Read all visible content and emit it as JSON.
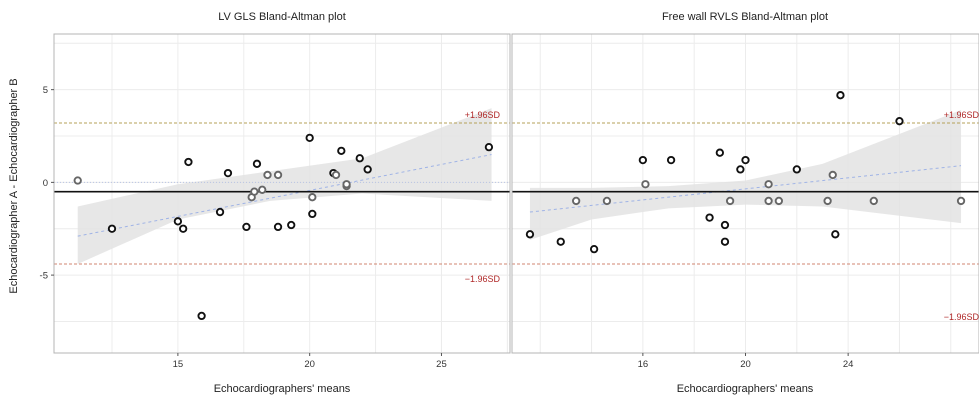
{
  "y_axis_label": "Echocardiographer A - Echocardiographer B",
  "colors": {
    "band": "#e3e3e3",
    "trend": "#9fb3e6",
    "limit_upper": "#b5a15a",
    "limit_lower": "#d08570",
    "limit_label": "#b02828",
    "mean_line": "#111111",
    "grid": "#ececec",
    "panel_border": "#b4b4b4"
  },
  "chart_data": [
    {
      "type": "scatter",
      "title": "LV GLS Bland-Altman plot",
      "xlabel": "Echocardiographers' means",
      "ylabel": "Echocardiographer A - Echocardiographer B",
      "xlim": [
        10.3,
        27.6
      ],
      "ylim": [
        -9.2,
        8.0
      ],
      "x_ticks": [
        15,
        20,
        25
      ],
      "y_ticks": [
        -5,
        0,
        5
      ],
      "grid": true,
      "mean_bias": -0.5,
      "upper_limit": 3.2,
      "lower_limit": -4.4,
      "upper_label": "+1.96SD",
      "lower_label": "−1.96SD",
      "trend_line": {
        "x": [
          11.2,
          26.9
        ],
        "y": [
          -2.9,
          1.5
        ]
      },
      "confidence_band": {
        "x": [
          11.2,
          15,
          18.5,
          22,
          26.9
        ],
        "upper": [
          -1.3,
          -0.1,
          0.6,
          1.3,
          4.0
        ],
        "lower": [
          -4.4,
          -2.0,
          -1.0,
          -0.6,
          -1.0
        ]
      },
      "points": [
        {
          "x": 11.2,
          "y": 0.1
        },
        {
          "x": 12.5,
          "y": -2.5
        },
        {
          "x": 15.0,
          "y": -2.1
        },
        {
          "x": 15.2,
          "y": -2.5
        },
        {
          "x": 15.4,
          "y": 1.1
        },
        {
          "x": 15.9,
          "y": -7.2
        },
        {
          "x": 16.6,
          "y": -1.6
        },
        {
          "x": 16.9,
          "y": 0.5
        },
        {
          "x": 17.6,
          "y": -2.4
        },
        {
          "x": 17.8,
          "y": -0.8
        },
        {
          "x": 17.9,
          "y": -0.5
        },
        {
          "x": 18.0,
          "y": 1.0
        },
        {
          "x": 18.2,
          "y": -0.4
        },
        {
          "x": 18.4,
          "y": 0.4
        },
        {
          "x": 18.8,
          "y": -2.4
        },
        {
          "x": 18.8,
          "y": 0.4
        },
        {
          "x": 19.3,
          "y": -2.3
        },
        {
          "x": 20.0,
          "y": 2.4
        },
        {
          "x": 20.1,
          "y": -0.8
        },
        {
          "x": 20.1,
          "y": -1.7
        },
        {
          "x": 20.9,
          "y": 0.5
        },
        {
          "x": 21.0,
          "y": 0.4
        },
        {
          "x": 21.2,
          "y": 1.7
        },
        {
          "x": 21.4,
          "y": -0.2
        },
        {
          "x": 21.4,
          "y": -0.1
        },
        {
          "x": 21.9,
          "y": 1.3
        },
        {
          "x": 22.2,
          "y": 0.7
        },
        {
          "x": 26.8,
          "y": 1.9
        }
      ]
    },
    {
      "type": "scatter",
      "title": "Free wall RVLS Bland-Altman plot",
      "xlabel": "Echocardiographers' means",
      "xlim": [
        10.9,
        29.1
      ],
      "ylim": [
        -9.2,
        8.0
      ],
      "x_ticks": [
        16,
        20,
        24
      ],
      "y_ticks": [
        -5,
        0,
        5
      ],
      "grid": true,
      "mean_bias": -0.5,
      "upper_limit": 3.2,
      "lower_limit": -4.4,
      "upper_label": "+1.96SD",
      "lower_label": "−1.96SD",
      "trend_line": {
        "x": [
          11.6,
          28.4
        ],
        "y": [
          -1.6,
          0.9
        ]
      },
      "confidence_band": {
        "x": [
          11.6,
          14,
          17,
          20,
          23,
          28.4
        ],
        "upper": [
          -0.3,
          -0.3,
          -0.2,
          0.1,
          1.0,
          3.9
        ],
        "lower": [
          -3.1,
          -2.0,
          -1.4,
          -1.2,
          -1.3,
          -2.2
        ]
      },
      "points": [
        {
          "x": 11.6,
          "y": -2.8
        },
        {
          "x": 12.8,
          "y": -3.2
        },
        {
          "x": 13.4,
          "y": -1.0
        },
        {
          "x": 14.1,
          "y": -3.6
        },
        {
          "x": 14.6,
          "y": -1.0
        },
        {
          "x": 16.0,
          "y": 1.2
        },
        {
          "x": 16.1,
          "y": -0.1
        },
        {
          "x": 17.1,
          "y": 1.2
        },
        {
          "x": 18.6,
          "y": -1.9
        },
        {
          "x": 19.0,
          "y": 1.6
        },
        {
          "x": 19.2,
          "y": -2.3
        },
        {
          "x": 19.2,
          "y": -3.2
        },
        {
          "x": 19.4,
          "y": -1.0
        },
        {
          "x": 19.8,
          "y": 0.7
        },
        {
          "x": 20.0,
          "y": 1.2
        },
        {
          "x": 20.9,
          "y": -0.1
        },
        {
          "x": 20.9,
          "y": -1.0
        },
        {
          "x": 21.3,
          "y": -1.0
        },
        {
          "x": 22.0,
          "y": 0.7
        },
        {
          "x": 23.2,
          "y": -1.0
        },
        {
          "x": 23.4,
          "y": 0.4
        },
        {
          "x": 23.5,
          "y": -2.8
        },
        {
          "x": 23.7,
          "y": 4.7
        },
        {
          "x": 25.0,
          "y": -1.0
        },
        {
          "x": 26.0,
          "y": 3.3
        },
        {
          "x": 28.4,
          "y": -1.0
        }
      ]
    }
  ]
}
